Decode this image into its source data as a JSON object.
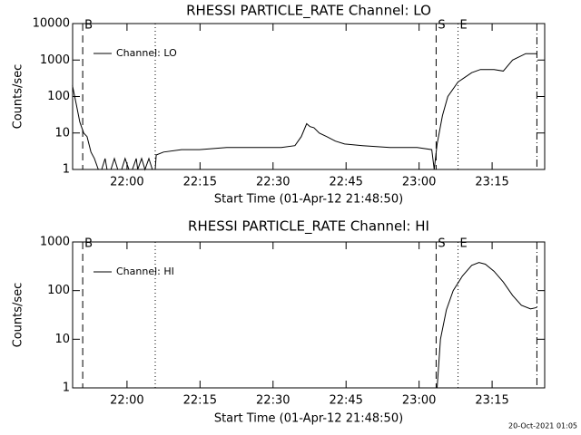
{
  "chart_data": [
    {
      "type": "line",
      "title": "RHESSI PARTICLE_RATE Channel: LO",
      "xlabel": "Start Time (01-Apr-12 21:48:50)",
      "ylabel": "Counts/sec",
      "log_y": true,
      "legend": "upper left",
      "ylim": [
        1,
        10000
      ],
      "yticks": [
        1,
        10,
        100,
        1000,
        10000
      ],
      "xlim": [
        1308.83,
        1405.8
      ],
      "xticks": [
        {
          "value": 1320,
          "label": "22:00"
        },
        {
          "value": 1335,
          "label": "22:15"
        },
        {
          "value": 1350,
          "label": "22:30"
        },
        {
          "value": 1365,
          "label": "22:45"
        },
        {
          "value": 1380,
          "label": "23:00"
        },
        {
          "value": 1395,
          "label": "23:15"
        }
      ],
      "markers": [
        {
          "x": 1310.9,
          "style": "dashed",
          "label": "B"
        },
        {
          "x": 1325.8,
          "style": "dotted"
        },
        {
          "x": 1383.5,
          "style": "dashed",
          "label": "S"
        },
        {
          "x": 1388.0,
          "style": "dotted",
          "label": "E"
        },
        {
          "x": 1404.2,
          "style": "dashdot"
        }
      ],
      "series": [
        {
          "name": "Channel: LO",
          "color": "#000000",
          "x": [
            1308.8,
            1309.6,
            1310.3,
            1311.1,
            1311.8,
            1312.6,
            1313.3,
            1314.1,
            1314.8,
            1315.5,
            1315.9,
            1316.7,
            1317.4,
            1318.1,
            1318.9,
            1319.6,
            1320.4,
            1321.1,
            1321.9,
            1322.2,
            1323.0,
            1323.7,
            1324.5,
            1325.2,
            1325.8,
            1326.0,
            1327.5,
            1331.2,
            1334.9,
            1340.5,
            1346.1,
            1351.7,
            1354.5,
            1355.8,
            1356.9,
            1357.6,
            1358.4,
            1359.5,
            1361.0,
            1362.8,
            1364.7,
            1368.4,
            1374.0,
            1379.6,
            1382.6,
            1383.1,
            1383.7,
            1384.8,
            1385.9,
            1388.0,
            1390.8,
            1392.6,
            1395.4,
            1397.3,
            1399.2,
            1401.9,
            1404.2
          ],
          "values": [
            200,
            60,
            20,
            10,
            8,
            3,
            2,
            1,
            1,
            2,
            1,
            1,
            2,
            1,
            1,
            2,
            1,
            1,
            2,
            1,
            2,
            1,
            2,
            1,
            1,
            2.5,
            3,
            3.5,
            3.5,
            4,
            4,
            4,
            4.5,
            8,
            18,
            15,
            14,
            10,
            8,
            6,
            5,
            4.5,
            4,
            4,
            3.5,
            1,
            5,
            30,
            100,
            250,
            450,
            550,
            550,
            500,
            1000,
            1500,
            1500
          ]
        }
      ]
    },
    {
      "type": "line",
      "title": "RHESSI PARTICLE_RATE Channel: HI",
      "xlabel": "Start Time (01-Apr-12 21:48:50)",
      "ylabel": "Counts/sec",
      "log_y": true,
      "legend": "upper left",
      "ylim": [
        1,
        1000
      ],
      "yticks": [
        1,
        10,
        100,
        1000
      ],
      "xlim": [
        1308.83,
        1405.8
      ],
      "xticks": [
        {
          "value": 1320,
          "label": "22:00"
        },
        {
          "value": 1335,
          "label": "22:15"
        },
        {
          "value": 1350,
          "label": "22:30"
        },
        {
          "value": 1365,
          "label": "22:45"
        },
        {
          "value": 1380,
          "label": "23:00"
        },
        {
          "value": 1395,
          "label": "23:15"
        }
      ],
      "markers": [
        {
          "x": 1310.9,
          "style": "dashed",
          "label": "B"
        },
        {
          "x": 1325.8,
          "style": "dotted"
        },
        {
          "x": 1383.5,
          "style": "dashed",
          "label": "S"
        },
        {
          "x": 1388.0,
          "style": "dotted",
          "label": "E"
        },
        {
          "x": 1404.2,
          "style": "dashdot"
        }
      ],
      "series": [
        {
          "name": "Channel: HI",
          "color": "#000000",
          "x": [
            1383.7,
            1384.4,
            1385.6,
            1387.0,
            1388.9,
            1390.8,
            1392.3,
            1393.6,
            1395.4,
            1397.3,
            1399.2,
            1401.0,
            1402.9,
            1404.2
          ],
          "values": [
            1,
            10,
            40,
            100,
            200,
            330,
            380,
            350,
            250,
            150,
            80,
            50,
            42,
            45
          ]
        }
      ]
    }
  ],
  "timestamp": "20-Oct-2021 01:05"
}
